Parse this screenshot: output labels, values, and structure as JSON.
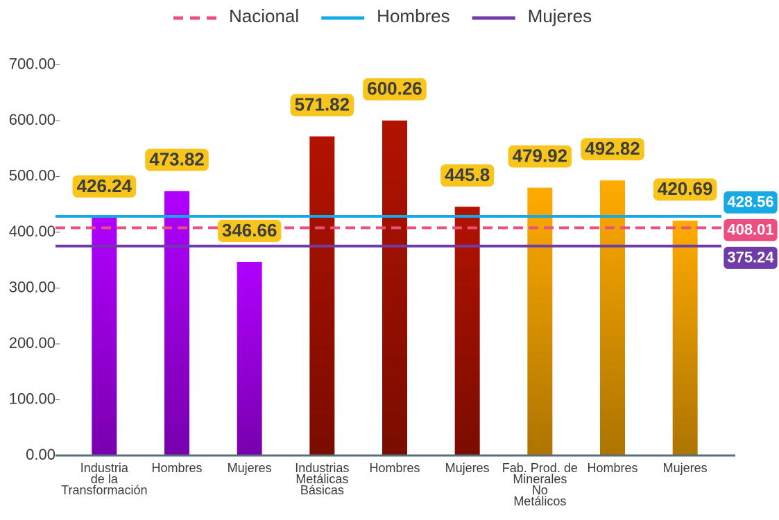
{
  "chart_data": {
    "type": "bar",
    "categories": [
      [
        "Industria",
        "de la",
        "Transformación"
      ],
      [
        "Hombres"
      ],
      [
        "Mujeres"
      ],
      [
        "Industrias",
        "Metálicas",
        "Básicas"
      ],
      [
        "Hombres"
      ],
      [
        "Mujeres"
      ],
      [
        "Fab. Prod. de",
        "Minerales",
        "No",
        "Metálicos"
      ],
      [
        "Hombres"
      ],
      [
        "Mujeres"
      ]
    ],
    "values": [
      426.24,
      473.82,
      346.66,
      571.82,
      600.26,
      445.8,
      479.92,
      492.82,
      420.69
    ],
    "colors": [
      "#b000ff",
      "#b000ff",
      "#b000ff",
      "#b31200",
      "#b31200",
      "#b31200",
      "#ffab00",
      "#ffab00",
      "#ffab00"
    ],
    "label_color": "#f7c51b",
    "reference_lines": [
      {
        "name": "Nacional",
        "value": 408.01,
        "color": "#ec4f7f",
        "dashed": true
      },
      {
        "name": "Hombres",
        "value": 428.56,
        "color": "#17a9e6",
        "dashed": false
      },
      {
        "name": "Mujeres",
        "value": 375.24,
        "color": "#6f3ba8",
        "dashed": false
      }
    ],
    "ylim": [
      0,
      700
    ],
    "yticks": [
      {
        "value": 0,
        "label": "0.00"
      },
      {
        "value": 100,
        "label": "100.00"
      },
      {
        "value": 200,
        "label": "200.00"
      },
      {
        "value": 300,
        "label": "300.00"
      },
      {
        "value": 400,
        "label": "400.00"
      },
      {
        "value": 500,
        "label": "500.00"
      },
      {
        "value": 600,
        "label": "600.00"
      },
      {
        "value": 700,
        "label": "700.00"
      }
    ],
    "grid": false,
    "legend": "top"
  }
}
